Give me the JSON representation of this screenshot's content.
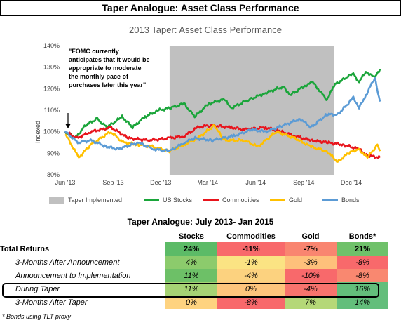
{
  "header": {
    "title": "Taper Analogue: Asset Class Performance"
  },
  "chart_data": {
    "type": "line",
    "title": "2013 Taper: Asset Class Performance",
    "ylabel": "Indexed",
    "ylim": [
      0.8,
      1.4
    ],
    "y_ticks": [
      "80%",
      "90%",
      "100%",
      "110%",
      "120%",
      "130%",
      "140%"
    ],
    "x_ticks": [
      "Jun '13",
      "Sep '13",
      "Dec '13",
      "Mar '14",
      "Jun '14",
      "Sep '14",
      "Dec '14"
    ],
    "x_range": [
      "2013-06-01",
      "2015-01-25"
    ],
    "taper_period": {
      "start": "2013-12-18",
      "end": "2014-10-29",
      "label": "Taper Implemented",
      "color": "#c0c0c0"
    },
    "annotation": "\"FOMC currently anticipates that it would be appropriate to moderate the monthly pace of purchases later this year\"",
    "legend": [
      "Taper Implemented",
      "US Stocks",
      "Commodities",
      "Gold",
      "Bonds"
    ],
    "series": [
      {
        "name": "US Stocks",
        "color": "#1aa53a",
        "points": [
          [
            "2013-06-01",
            1.0
          ],
          [
            "2013-06-20",
            0.97
          ],
          [
            "2013-07-10",
            1.03
          ],
          [
            "2013-08-01",
            1.06
          ],
          [
            "2013-08-20",
            1.02
          ],
          [
            "2013-09-18",
            1.07
          ],
          [
            "2013-10-08",
            1.02
          ],
          [
            "2013-11-01",
            1.07
          ],
          [
            "2013-11-27",
            1.1
          ],
          [
            "2013-12-18",
            1.11
          ],
          [
            "2014-01-15",
            1.13
          ],
          [
            "2014-02-04",
            1.07
          ],
          [
            "2014-03-03",
            1.13
          ],
          [
            "2014-04-02",
            1.15
          ],
          [
            "2014-04-15",
            1.11
          ],
          [
            "2014-05-20",
            1.15
          ],
          [
            "2014-06-20",
            1.18
          ],
          [
            "2014-07-24",
            1.21
          ],
          [
            "2014-08-06",
            1.17
          ],
          [
            "2014-09-01",
            1.21
          ],
          [
            "2014-09-18",
            1.23
          ],
          [
            "2014-10-15",
            1.15
          ],
          [
            "2014-10-31",
            1.22
          ],
          [
            "2014-11-20",
            1.25
          ],
          [
            "2014-12-05",
            1.27
          ],
          [
            "2014-12-16",
            1.23
          ],
          [
            "2014-12-29",
            1.28
          ],
          [
            "2015-01-15",
            1.25
          ],
          [
            "2015-01-25",
            1.29
          ]
        ]
      },
      {
        "name": "Commodities",
        "color": "#e8141c",
        "points": [
          [
            "2013-06-01",
            1.0
          ],
          [
            "2013-06-24",
            0.97
          ],
          [
            "2013-07-20",
            1.0
          ],
          [
            "2013-08-28",
            1.02
          ],
          [
            "2013-09-30",
            0.97
          ],
          [
            "2013-11-07",
            0.96
          ],
          [
            "2013-12-18",
            0.97
          ],
          [
            "2014-01-15",
            0.98
          ],
          [
            "2014-02-10",
            1.02
          ],
          [
            "2014-03-05",
            1.03
          ],
          [
            "2014-04-15",
            1.02
          ],
          [
            "2014-05-10",
            1.01
          ],
          [
            "2014-06-20",
            1.02
          ],
          [
            "2014-07-20",
            1.0
          ],
          [
            "2014-08-15",
            0.98
          ],
          [
            "2014-09-15",
            0.96
          ],
          [
            "2014-10-15",
            0.95
          ],
          [
            "2014-11-15",
            0.94
          ],
          [
            "2014-12-15",
            0.92
          ],
          [
            "2015-01-01",
            0.89
          ],
          [
            "2015-01-25",
            0.88
          ]
        ]
      },
      {
        "name": "Gold",
        "color": "#ffc000",
        "points": [
          [
            "2013-06-01",
            0.99
          ],
          [
            "2013-06-27",
            0.88
          ],
          [
            "2013-07-20",
            0.94
          ],
          [
            "2013-08-27",
            1.0
          ],
          [
            "2013-09-20",
            0.95
          ],
          [
            "2013-10-20",
            0.94
          ],
          [
            "2013-11-15",
            0.93
          ],
          [
            "2013-12-18",
            0.91
          ],
          [
            "2014-01-15",
            0.94
          ],
          [
            "2014-02-10",
            0.97
          ],
          [
            "2014-03-14",
            1.03
          ],
          [
            "2014-04-01",
            0.96
          ],
          [
            "2014-05-10",
            0.96
          ],
          [
            "2014-06-05",
            0.93
          ],
          [
            "2014-07-10",
            1.0
          ],
          [
            "2014-08-15",
            0.97
          ],
          [
            "2014-09-15",
            0.93
          ],
          [
            "2014-10-15",
            0.91
          ],
          [
            "2014-11-05",
            0.86
          ],
          [
            "2014-11-25",
            0.9
          ],
          [
            "2014-12-15",
            0.92
          ],
          [
            "2015-01-01",
            0.88
          ],
          [
            "2015-01-20",
            0.94
          ],
          [
            "2015-01-25",
            0.91
          ]
        ]
      },
      {
        "name": "Bonds",
        "color": "#5b9bd5",
        "points": [
          [
            "2013-06-01",
            1.0
          ],
          [
            "2013-06-25",
            0.95
          ],
          [
            "2013-07-20",
            0.96
          ],
          [
            "2013-08-20",
            0.93
          ],
          [
            "2013-09-10",
            0.92
          ],
          [
            "2013-10-20",
            0.95
          ],
          [
            "2013-11-15",
            0.92
          ],
          [
            "2013-12-18",
            0.91
          ],
          [
            "2014-01-15",
            0.95
          ],
          [
            "2014-02-05",
            0.97
          ],
          [
            "2014-03-10",
            0.96
          ],
          [
            "2014-04-20",
            0.98
          ],
          [
            "2014-05-25",
            1.01
          ],
          [
            "2014-06-20",
            1.0
          ],
          [
            "2014-07-25",
            1.03
          ],
          [
            "2014-08-25",
            1.06
          ],
          [
            "2014-09-15",
            1.02
          ],
          [
            "2014-10-15",
            1.08
          ],
          [
            "2014-11-05",
            1.08
          ],
          [
            "2014-11-25",
            1.13
          ],
          [
            "2014-12-05",
            1.16
          ],
          [
            "2014-12-16",
            1.11
          ],
          [
            "2014-12-29",
            1.17
          ],
          [
            "2015-01-15",
            1.25
          ],
          [
            "2015-01-25",
            1.14
          ]
        ]
      }
    ]
  },
  "table": {
    "title": "Taper Analogue: July 2013- Jan 2015",
    "columns": [
      "Stocks",
      "Commodities",
      "Gold",
      "Bonds*"
    ],
    "rows": [
      {
        "label": "Total Returns",
        "values": [
          "24%",
          "-11%",
          "-7%",
          "21%"
        ],
        "colors": [
          "#5cbb67",
          "#f8696b",
          "#f98570",
          "#6fc16a"
        ]
      },
      {
        "label": "3-Months After Announcement",
        "values": [
          "4%",
          "-1%",
          "-3%",
          "-8%"
        ],
        "colors": [
          "#8ccb6c",
          "#fbe383",
          "#fec07b",
          "#f8696b"
        ]
      },
      {
        "label": "Announcement to Implementation",
        "values": [
          "11%",
          "-4%",
          "-10%",
          "-8%"
        ],
        "colors": [
          "#6dc067",
          "#fcd27f",
          "#f8696b",
          "#f98870"
        ]
      },
      {
        "label": "During Taper",
        "values": [
          "11%",
          "0%",
          "-4%",
          "16%"
        ],
        "colors": [
          "#a6d374",
          "#fec57c",
          "#f8736d",
          "#63be7b"
        ]
      },
      {
        "label": "3-Months After Taper",
        "values": [
          "0%",
          "-8%",
          "7%",
          "14%"
        ],
        "colors": [
          "#fed380",
          "#f8696b",
          "#b5d878",
          "#63be7b"
        ]
      }
    ],
    "footnote": "* Bonds using TLT proxy"
  }
}
